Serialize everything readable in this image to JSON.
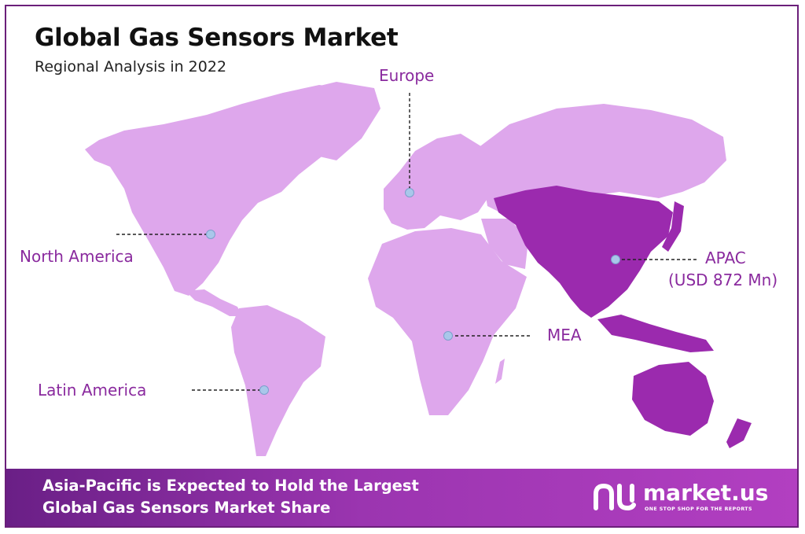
{
  "header": {
    "title": "Global Gas Sensors Market",
    "subtitle": "Regional Analysis in 2022"
  },
  "regions": [
    {
      "key": "europe",
      "label": "Europe"
    },
    {
      "key": "north_america",
      "label": "North America"
    },
    {
      "key": "apac",
      "label": "APAC",
      "value_label": "(USD 872 Mn)"
    },
    {
      "key": "mea",
      "label": "MEA"
    },
    {
      "key": "latin_america",
      "label": "Latin America"
    }
  ],
  "highlighted_region": "APAC",
  "colors": {
    "land": "#dea7ec",
    "highlight": "#9b2aae",
    "label": "#8a2a9e",
    "marker": "#a9c7ea",
    "banner_start": "#6a1f86",
    "banner_end": "#b23fc1"
  },
  "footer": {
    "line1": "Asia-Pacific is Expected to Hold the Largest",
    "line2": "Global Gas Sensors Market Share",
    "brand": "market.us",
    "tagline": "ONE STOP SHOP FOR THE REPORTS"
  }
}
